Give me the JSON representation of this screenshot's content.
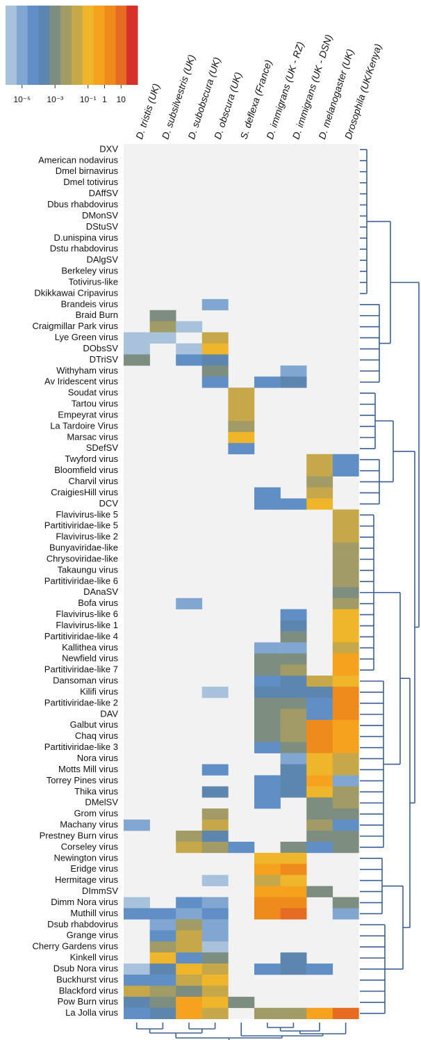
{
  "chart_data": {
    "type": "heatmap",
    "log_scale": true,
    "columns": [
      "D. tristis (UK)",
      "D. subsilvestris (UK)",
      "D. subobscura (UK)",
      "D. obscura (UK)",
      "S. deflexa (France)",
      "D. immigrans (UK - RZ)",
      "D. immigrans (UK - DSN)",
      "D. melanogaster (UK)",
      "Drosophila (UK/Kenya)"
    ],
    "rows": [
      "DXV",
      "American nodavirus",
      "Dmel birnavirus",
      "Dmel totivirus",
      "DAffSV",
      "Dbus rhabdovirus",
      "DMonSV",
      "DStuSV",
      "D.unispina virus",
      "Dstu rhabdovirus",
      "DAlgSV",
      "Berkeley virus",
      "Totivirus-like",
      "Dkikkawai Cripavirus",
      "Brandeis virus",
      "Braid Burn",
      "Craigmillar Park virus",
      "Lye Green virus",
      "DObsSV",
      "DTriSV",
      "Withyham virus",
      "Av Iridescent virus",
      "Soudat virus",
      "Tartou virus",
      "Empeyrat virus",
      "La Tardoire Virus",
      "Marsac virus",
      "SDefSV",
      "Twyford virus",
      "Bloomfield virus",
      "Charvil virus",
      "CraigiesHill virus",
      "DCV",
      "Flavivirus-like 5",
      "Partitiviridae-like 5",
      "Flavivirus-like 2",
      "Bunyaviridae-like",
      "Chrysoviridae-like",
      "Takaungu virus",
      "Partitiviridae-like 6",
      "DAnaSV",
      "Bofa virus",
      "Flavivirus-like 6",
      "Flavivirus-like 1",
      "Partitiviridae-like 4",
      "Kallithea virus",
      "Newfield virus",
      "Partitiviridae-like 7",
      "Dansoman virus",
      "Kilifi virus",
      "Partitiviridae-like 2",
      "DAV",
      "Galbut virus",
      "Chaq virus",
      "Partitiviridae-like 3",
      "Nora virus",
      "Motts Mill virus",
      "Torrey Pines virus",
      "Thika virus",
      "DMelSV",
      "Grom virus",
      "Machany virus",
      "Prestney Burn virus",
      "Corseley virus",
      "Newington virus",
      "Eridge virus",
      "Hermitage virus",
      "DImmSV",
      "Dimm Nora virus",
      "Muthill virus",
      "Dsub rhabdovirus",
      "Grange virus",
      "Cherry Gardens virus",
      "Kinkell virus",
      "Dsub Nora virus",
      "Buckhurst virus",
      "Blackford virus",
      "Pow Burn virus",
      "La Jolla virus"
    ],
    "values": [
      [
        null,
        null,
        null,
        null,
        null,
        null,
        null,
        null,
        null
      ],
      [
        null,
        null,
        null,
        null,
        null,
        null,
        null,
        null,
        null
      ],
      [
        null,
        null,
        null,
        null,
        null,
        null,
        null,
        null,
        null
      ],
      [
        null,
        null,
        null,
        null,
        null,
        null,
        null,
        null,
        null
      ],
      [
        null,
        null,
        null,
        null,
        null,
        null,
        null,
        null,
        null
      ],
      [
        null,
        null,
        null,
        null,
        null,
        null,
        null,
        null,
        null
      ],
      [
        null,
        null,
        null,
        null,
        null,
        null,
        null,
        null,
        null
      ],
      [
        null,
        null,
        null,
        null,
        null,
        null,
        null,
        null,
        null
      ],
      [
        null,
        null,
        null,
        null,
        null,
        null,
        null,
        null,
        null
      ],
      [
        null,
        null,
        null,
        null,
        null,
        null,
        null,
        null,
        null
      ],
      [
        null,
        null,
        null,
        null,
        null,
        null,
        null,
        null,
        null
      ],
      [
        null,
        null,
        null,
        null,
        null,
        null,
        null,
        null,
        null
      ],
      [
        null,
        null,
        null,
        null,
        null,
        null,
        null,
        null,
        null
      ],
      [
        null,
        null,
        null,
        null,
        null,
        null,
        null,
        null,
        null
      ],
      [
        null,
        null,
        null,
        1e-05,
        null,
        null,
        null,
        null,
        null
      ],
      [
        null,
        0.001,
        null,
        null,
        null,
        null,
        null,
        null,
        null
      ],
      [
        null,
        0.005,
        2e-06,
        null,
        null,
        null,
        null,
        null,
        null
      ],
      [
        2e-06,
        2e-06,
        null,
        0.02,
        null,
        null,
        null,
        null,
        null
      ],
      [
        2e-06,
        null,
        2e-06,
        0.1,
        null,
        null,
        null,
        null,
        null
      ],
      [
        0.001,
        null,
        5e-05,
        0.0002,
        null,
        null,
        null,
        null,
        null
      ],
      [
        null,
        null,
        null,
        0.001,
        null,
        null,
        1e-05,
        null,
        null
      ],
      [
        null,
        null,
        null,
        5e-05,
        null,
        5e-05,
        0.0002,
        null,
        null
      ],
      [
        null,
        null,
        null,
        null,
        0.02,
        null,
        null,
        null,
        null
      ],
      [
        null,
        null,
        null,
        null,
        0.02,
        null,
        null,
        null,
        null
      ],
      [
        null,
        null,
        null,
        null,
        0.02,
        null,
        null,
        null,
        null
      ],
      [
        null,
        null,
        null,
        null,
        0.005,
        null,
        null,
        null,
        null
      ],
      [
        null,
        null,
        null,
        null,
        0.1,
        null,
        null,
        null,
        null
      ],
      [
        null,
        null,
        null,
        null,
        5e-05,
        null,
        null,
        null,
        null
      ],
      [
        null,
        null,
        null,
        null,
        null,
        null,
        null,
        0.02,
        5e-05
      ],
      [
        null,
        null,
        null,
        null,
        null,
        null,
        null,
        0.02,
        5e-05
      ],
      [
        null,
        null,
        null,
        null,
        null,
        null,
        null,
        0.005,
        null
      ],
      [
        null,
        null,
        null,
        null,
        null,
        5e-05,
        null,
        0.02,
        null
      ],
      [
        null,
        null,
        null,
        null,
        null,
        5e-05,
        5e-05,
        0.1,
        null
      ],
      [
        null,
        null,
        null,
        null,
        null,
        null,
        null,
        null,
        0.02
      ],
      [
        null,
        null,
        null,
        null,
        null,
        null,
        null,
        null,
        0.02
      ],
      [
        null,
        null,
        null,
        null,
        null,
        null,
        null,
        null,
        0.02
      ],
      [
        null,
        null,
        null,
        null,
        null,
        null,
        null,
        null,
        0.005
      ],
      [
        null,
        null,
        null,
        null,
        null,
        null,
        null,
        null,
        0.005
      ],
      [
        null,
        null,
        null,
        null,
        null,
        null,
        null,
        null,
        0.005
      ],
      [
        null,
        null,
        null,
        null,
        null,
        null,
        null,
        null,
        0.005
      ],
      [
        null,
        null,
        null,
        null,
        null,
        null,
        null,
        null,
        0.001
      ],
      [
        null,
        null,
        1e-05,
        null,
        null,
        null,
        null,
        null,
        0.005
      ],
      [
        null,
        null,
        null,
        null,
        null,
        null,
        5e-05,
        null,
        0.1
      ],
      [
        null,
        null,
        null,
        null,
        null,
        null,
        0.0002,
        null,
        0.1
      ],
      [
        null,
        null,
        null,
        null,
        null,
        null,
        0.001,
        null,
        0.1
      ],
      [
        null,
        null,
        null,
        null,
        null,
        1e-05,
        1e-05,
        null,
        0.02
      ],
      [
        null,
        null,
        null,
        null,
        null,
        0.001,
        0.001,
        null,
        0.5
      ],
      [
        null,
        null,
        null,
        null,
        null,
        0.001,
        0.005,
        null,
        0.5
      ],
      [
        null,
        null,
        null,
        null,
        null,
        5e-05,
        0.0002,
        0.02,
        0.1
      ],
      [
        null,
        null,
        null,
        2e-06,
        null,
        0.0002,
        0.0002,
        0.0002,
        2
      ],
      [
        null,
        null,
        null,
        null,
        null,
        0.001,
        0.001,
        5e-05,
        2
      ],
      [
        null,
        null,
        null,
        null,
        null,
        0.001,
        0.005,
        5e-05,
        2
      ],
      [
        null,
        null,
        null,
        null,
        null,
        0.001,
        0.005,
        2,
        0.5
      ],
      [
        null,
        null,
        null,
        null,
        null,
        0.001,
        0.005,
        2,
        0.5
      ],
      [
        null,
        null,
        null,
        null,
        null,
        5e-05,
        0.001,
        2,
        0.5
      ],
      [
        null,
        null,
        null,
        null,
        null,
        null,
        1e-05,
        0.1,
        0.02
      ],
      [
        null,
        null,
        null,
        5e-05,
        null,
        null,
        0.0002,
        0.1,
        0.02
      ],
      [
        null,
        null,
        null,
        null,
        null,
        5e-05,
        0.0002,
        0.5,
        1e-05
      ],
      [
        null,
        null,
        null,
        0.0002,
        null,
        5e-05,
        0.0002,
        0.1,
        0.005
      ],
      [
        null,
        null,
        null,
        null,
        null,
        5e-05,
        null,
        0.001,
        0.005
      ],
      [
        null,
        null,
        null,
        0.005,
        null,
        null,
        null,
        0.001,
        0.001
      ],
      [
        1e-05,
        null,
        null,
        0.02,
        null,
        null,
        null,
        0.005,
        5e-05
      ],
      [
        null,
        null,
        0.005,
        0.0002,
        null,
        null,
        null,
        0.001,
        0.001
      ],
      [
        null,
        null,
        0.02,
        0.005,
        5e-05,
        null,
        0.001,
        5e-05,
        0.001
      ],
      [
        null,
        null,
        null,
        null,
        null,
        0.1,
        0.1,
        null,
        null
      ],
      [
        null,
        null,
        null,
        null,
        null,
        0.5,
        2,
        null,
        null
      ],
      [
        null,
        null,
        null,
        2e-06,
        null,
        0.02,
        0.1,
        null,
        null
      ],
      [
        null,
        null,
        null,
        null,
        null,
        0.5,
        0.5,
        0.001,
        null
      ],
      [
        2e-06,
        null,
        5e-05,
        1e-05,
        null,
        2,
        2,
        null,
        0.001
      ],
      [
        5e-05,
        5e-05,
        1e-05,
        5e-05,
        null,
        2,
        10,
        null,
        1e-05
      ],
      [
        null,
        1e-05,
        0.005,
        1e-05,
        null,
        null,
        null,
        null,
        null
      ],
      [
        null,
        5e-05,
        0.02,
        1e-05,
        null,
        null,
        null,
        null,
        null
      ],
      [
        null,
        0.005,
        0.02,
        2e-06,
        null,
        null,
        null,
        null,
        null
      ],
      [
        null,
        0.1,
        5e-05,
        0.001,
        null,
        null,
        0.0002,
        null,
        null
      ],
      [
        2e-06,
        0.0002,
        0.1,
        0.02,
        null,
        5e-05,
        0.0002,
        5e-05,
        null
      ],
      [
        5e-05,
        5e-05,
        0.02,
        0.1,
        null,
        null,
        null,
        null,
        null
      ],
      [
        0.02,
        0.005,
        0.001,
        0.02,
        null,
        null,
        null,
        null,
        null
      ],
      [
        0.0002,
        0.001,
        0.5,
        0.1,
        0.001,
        null,
        null,
        null,
        null
      ],
      [
        5e-05,
        0.0002,
        0.5,
        0.02,
        null,
        0.005,
        0.005,
        0.5,
        10
      ]
    ],
    "colors": [
      "#a8c2dc",
      "#81a7d1",
      "#5f8fc5",
      "#5c86ad",
      "#7d8e80",
      "#a19c66",
      "#c6a84a",
      "#efb52b",
      "#f5a31f",
      "#ef8a1d",
      "#e66c22",
      "#d6302b"
    ],
    "missing_color": "#f2f2f2",
    "colorbar": {
      "lim": [
        1e-06,
        100
      ],
      "ticks": [
        {
          "value": 1e-05,
          "label": "10⁻⁵"
        },
        {
          "value": 0.001,
          "label": "10⁻³"
        },
        {
          "value": 0.1,
          "label": "10⁻¹"
        },
        1,
        10
      ]
    }
  }
}
